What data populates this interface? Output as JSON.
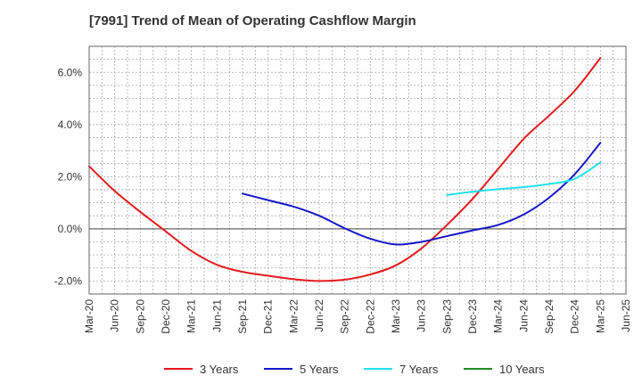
{
  "chart_data": {
    "type": "line",
    "title": "[7991]  Trend of Mean of Operating Cashflow Margin",
    "xlabel": "",
    "ylabel": "",
    "x_ticks": [
      "Mar-20",
      "Jun-20",
      "Sep-20",
      "Dec-20",
      "Mar-21",
      "Jun-21",
      "Sep-21",
      "Dec-21",
      "Mar-22",
      "Jun-22",
      "Sep-22",
      "Dec-22",
      "Mar-23",
      "Jun-23",
      "Sep-23",
      "Dec-23",
      "Mar-24",
      "Jun-24",
      "Sep-24",
      "Dec-24",
      "Mar-25",
      "Jun-25"
    ],
    "y_ticks": [
      -2.0,
      0.0,
      2.0,
      4.0,
      6.0
    ],
    "y_tick_labels": [
      "-2.0%",
      "0.0%",
      "2.0%",
      "4.0%",
      "6.0%"
    ],
    "ylim": [
      -2.5,
      7.0
    ],
    "grid": true,
    "legend_position": "bottom",
    "series": [
      {
        "name": "3 Years",
        "color": "#e31a1c",
        "start_index": 0,
        "values": [
          2.4,
          1.45,
          0.65,
          -0.1,
          -0.85,
          -1.38,
          -1.65,
          -1.8,
          -1.93,
          -2.0,
          -1.95,
          -1.75,
          -1.4,
          -0.75,
          0.15,
          1.15,
          2.3,
          3.45,
          4.35,
          5.3,
          6.55
        ]
      },
      {
        "name": "5 Years",
        "color": "#1515c8",
        "start_index": 6,
        "values": [
          1.35,
          1.1,
          0.85,
          0.5,
          0.02,
          -0.38,
          -0.6,
          -0.5,
          -0.28,
          -0.06,
          0.15,
          0.55,
          1.2,
          2.1,
          3.3
        ]
      },
      {
        "name": "7 Years",
        "color": "#22e0ee",
        "start_index": 14,
        "values": [
          1.3,
          1.42,
          1.52,
          1.6,
          1.72,
          1.92,
          2.55
        ]
      },
      {
        "name": "10 Years",
        "color": "#228b22",
        "start_index": 0,
        "values": []
      }
    ]
  }
}
